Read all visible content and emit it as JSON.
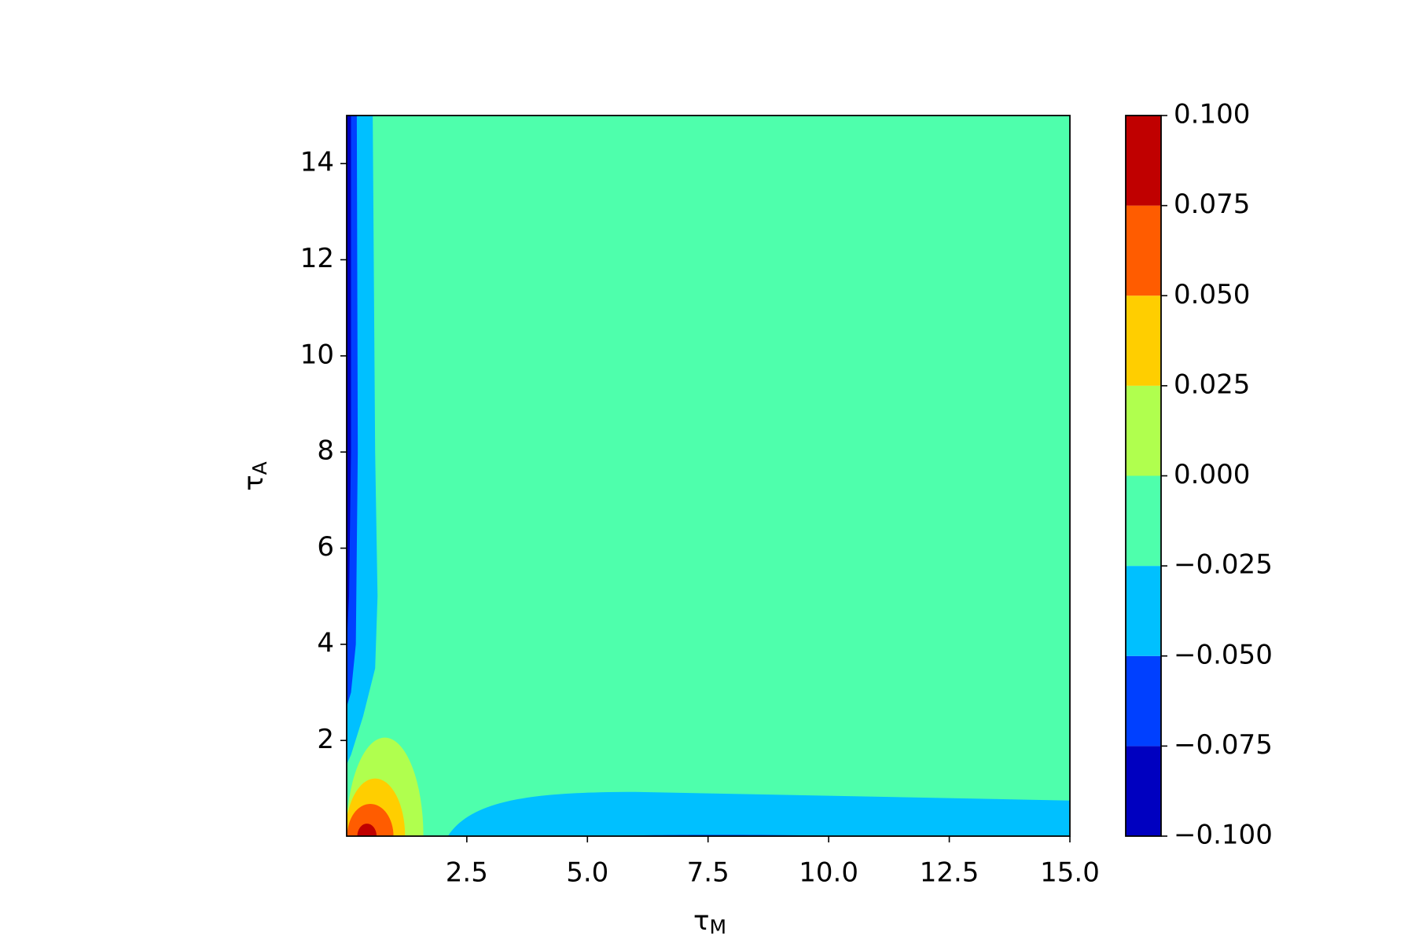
{
  "chart_data": {
    "type": "contour",
    "xlabel": {
      "text": "τ",
      "sub": "M"
    },
    "ylabel": {
      "text": "τ",
      "sub": "A"
    },
    "xlim": [
      0.01,
      15
    ],
    "ylim": [
      0.01,
      15
    ],
    "xticks": [
      2.5,
      {
        "value": 5,
        "label": "5.0"
      },
      7.5,
      {
        "value": 10,
        "label": "10.0"
      },
      12.5,
      {
        "value": 15,
        "label": "15.0"
      }
    ],
    "yticks": [
      2,
      4,
      6,
      8,
      10,
      12,
      14
    ],
    "levels": [
      -0.1,
      -0.075,
      -0.05,
      -0.025,
      0,
      0.025,
      0.05,
      0.075,
      0.1
    ],
    "colors": [
      "#0000c0",
      "#0040ff",
      "#00c0ff",
      "#4effac",
      "#b0ff4e",
      "#ffce00",
      "#ff5c00",
      "#c00000"
    ],
    "cticks": [
      {
        "value": -0.1,
        "label": "−0.100"
      },
      {
        "value": -0.075,
        "label": "−0.075"
      },
      {
        "value": -0.05,
        "label": "−0.050"
      },
      {
        "value": -0.025,
        "label": "−0.025"
      },
      {
        "value": 0,
        "label": "0.000"
      },
      {
        "value": 0.025,
        "label": "0.025"
      },
      {
        "value": 0.05,
        "label": "0.050"
      },
      {
        "value": 0.075,
        "label": "0.075"
      },
      {
        "value": 0.1,
        "label": "0.100"
      }
    ]
  }
}
